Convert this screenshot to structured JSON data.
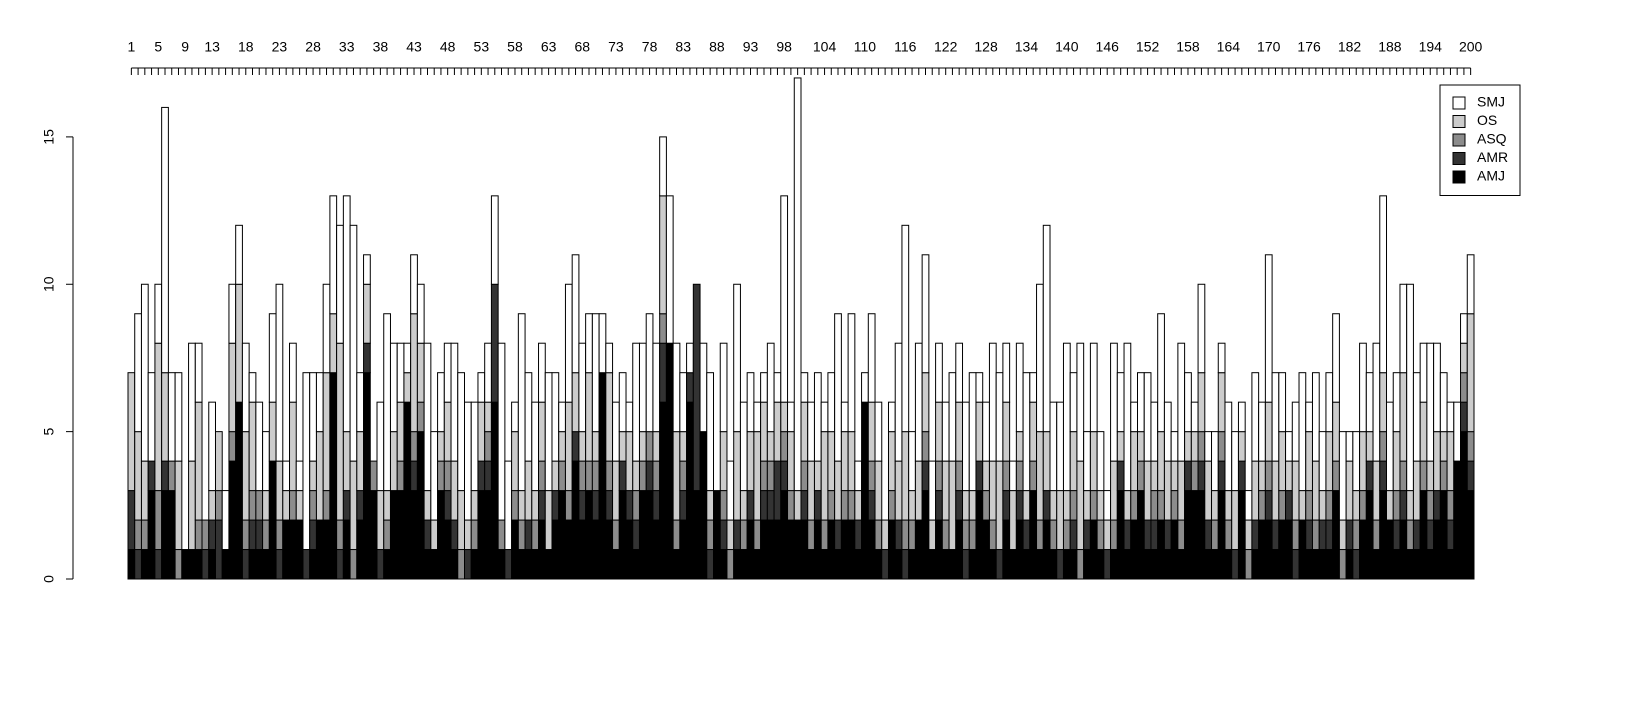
{
  "chart_data": {
    "type": "stacked_bar",
    "categories": [
      1,
      null,
      null,
      null,
      5,
      null,
      null,
      null,
      9,
      null,
      null,
      null,
      13,
      null,
      null,
      null,
      null,
      18,
      null,
      null,
      null,
      null,
      23,
      null,
      null,
      null,
      null,
      28,
      null,
      null,
      null,
      null,
      33,
      null,
      null,
      null,
      null,
      38,
      null,
      null,
      null,
      null,
      43,
      null,
      null,
      null,
      null,
      48,
      null,
      null,
      null,
      null,
      53,
      null,
      null,
      null,
      null,
      58,
      null,
      null,
      null,
      null,
      63,
      null,
      null,
      null,
      null,
      68,
      null,
      null,
      null,
      null,
      73,
      null,
      null,
      null,
      null,
      78,
      null,
      null,
      null,
      null,
      83,
      null,
      null,
      null,
      null,
      88,
      null,
      null,
      null,
      null,
      93,
      null,
      null,
      null,
      null,
      98,
      null,
      null,
      null,
      null,
      null,
      104,
      null,
      null,
      null,
      null,
      null,
      110,
      null,
      null,
      null,
      null,
      null,
      116,
      null,
      null,
      null,
      null,
      null,
      122,
      null,
      null,
      null,
      null,
      null,
      128,
      null,
      null,
      null,
      null,
      null,
      134,
      null,
      null,
      null,
      null,
      null,
      140,
      null,
      null,
      null,
      null,
      null,
      146,
      null,
      null,
      null,
      null,
      null,
      152,
      null,
      null,
      null,
      null,
      null,
      158,
      null,
      null,
      null,
      null,
      null,
      164,
      null,
      null,
      null,
      null,
      null,
      170,
      null,
      null,
      null,
      null,
      null,
      176,
      null,
      null,
      null,
      null,
      null,
      182,
      null,
      null,
      null,
      null,
      null,
      188,
      null,
      null,
      null,
      null,
      null,
      194,
      null,
      null,
      null,
      null,
      null,
      200
    ],
    "series": [
      {
        "name": "AMJ",
        "color": "#000000",
        "values": [
          1,
          0,
          1,
          3,
          0,
          3,
          3,
          0,
          1,
          1,
          1,
          0,
          1,
          0,
          1,
          4,
          6,
          0,
          1,
          1,
          1,
          4,
          0,
          2,
          2,
          2,
          0,
          1,
          2,
          2,
          7,
          0,
          2,
          0,
          2,
          7,
          3,
          0,
          1,
          3,
          3,
          6,
          3,
          5,
          1,
          1,
          3,
          2,
          1,
          0,
          0,
          1,
          3,
          3,
          6,
          1,
          0,
          2,
          1,
          1,
          1,
          2,
          1,
          2,
          3,
          2,
          4,
          2,
          3,
          2,
          7,
          2,
          1,
          3,
          2,
          1,
          3,
          3,
          2,
          6,
          8,
          1,
          2,
          6,
          3,
          5,
          0,
          3,
          1,
          0,
          1,
          1,
          2,
          1,
          2,
          2,
          2,
          3,
          2,
          2,
          2,
          1,
          2,
          1,
          2,
          1,
          2,
          2,
          1,
          6,
          2,
          1,
          0,
          2,
          1,
          0,
          1,
          2,
          3,
          1,
          2,
          1,
          1,
          2,
          0,
          1,
          3,
          2,
          1,
          0,
          2,
          1,
          2,
          1,
          3,
          1,
          2,
          1,
          0,
          1,
          1,
          0,
          1,
          2,
          1,
          0,
          1,
          3,
          1,
          2,
          3,
          1,
          1,
          2,
          1,
          2,
          1,
          3,
          3,
          3,
          1,
          1,
          3,
          1,
          0,
          3,
          0,
          1,
          2,
          2,
          1,
          2,
          2,
          0,
          2,
          1,
          1,
          1,
          1,
          3,
          0,
          1,
          0,
          2,
          3,
          1,
          3,
          2,
          1,
          2,
          1,
          1,
          3,
          1,
          2,
          3,
          1,
          4,
          5,
          3
        ]
      },
      {
        "name": "AMR",
        "color": "#333333",
        "values": [
          2,
          1,
          0,
          1,
          1,
          1,
          0,
          0,
          0,
          0,
          0,
          1,
          1,
          2,
          0,
          0,
          0,
          1,
          1,
          1,
          0,
          0,
          1,
          0,
          0,
          0,
          1,
          1,
          0,
          0,
          0,
          1,
          1,
          0,
          1,
          1,
          0,
          1,
          0,
          0,
          0,
          0,
          1,
          0,
          1,
          0,
          0,
          1,
          1,
          0,
          1,
          0,
          1,
          1,
          4,
          0,
          1,
          0,
          0,
          1,
          0,
          1,
          0,
          1,
          0,
          0,
          1,
          1,
          0,
          1,
          0,
          1,
          0,
          1,
          1,
          1,
          0,
          1,
          1,
          2,
          0,
          0,
          1,
          1,
          7,
          0,
          1,
          0,
          1,
          0,
          1,
          0,
          1,
          0,
          1,
          1,
          2,
          1,
          0,
          0,
          1,
          0,
          1,
          0,
          0,
          1,
          0,
          0,
          1,
          0,
          1,
          0,
          1,
          0,
          1,
          1,
          0,
          0,
          1,
          0,
          1,
          0,
          0,
          1,
          1,
          0,
          1,
          0,
          0,
          1,
          1,
          0,
          1,
          1,
          0,
          0,
          1,
          0,
          1,
          0,
          1,
          0,
          1,
          0,
          0,
          1,
          0,
          1,
          1,
          0,
          0,
          1,
          1,
          0,
          1,
          0,
          0,
          1,
          0,
          1,
          1,
          0,
          1,
          0,
          1,
          1,
          0,
          1,
          0,
          1,
          1,
          0,
          1,
          1,
          0,
          1,
          0,
          1,
          1,
          0,
          0,
          1,
          1,
          0,
          1,
          0,
          1,
          0,
          1,
          1,
          0,
          1,
          0,
          1,
          1,
          0,
          1,
          0,
          1,
          1
        ]
      },
      {
        "name": "ASQ",
        "color": "#8c8c8c",
        "values": [
          0,
          1,
          1,
          0,
          2,
          0,
          1,
          1,
          0,
          0,
          1,
          1,
          0,
          1,
          0,
          1,
          0,
          1,
          1,
          1,
          1,
          0,
          1,
          0,
          1,
          0,
          0,
          1,
          0,
          1,
          0,
          1,
          0,
          1,
          0,
          0,
          1,
          0,
          1,
          0,
          1,
          0,
          1,
          1,
          0,
          0,
          1,
          1,
          0,
          1,
          0,
          1,
          0,
          1,
          0,
          1,
          0,
          1,
          1,
          0,
          1,
          1,
          0,
          0,
          1,
          1,
          0,
          1,
          1,
          1,
          0,
          1,
          1,
          0,
          0,
          1,
          1,
          1,
          1,
          1,
          0,
          1,
          1,
          0,
          0,
          0,
          1,
          0,
          1,
          1,
          0,
          1,
          0,
          1,
          1,
          1,
          0,
          1,
          1,
          0,
          1,
          1,
          0,
          1,
          1,
          0,
          1,
          1,
          0,
          0,
          1,
          1,
          0,
          1,
          0,
          1,
          1,
          0,
          1,
          0,
          1,
          1,
          0,
          1,
          1,
          1,
          0,
          1,
          1,
          0,
          1,
          0,
          1,
          0,
          1,
          1,
          0,
          1,
          0,
          1,
          1,
          1,
          0,
          1,
          1,
          0,
          1,
          0,
          0,
          1,
          1,
          0,
          1,
          1,
          0,
          1,
          1,
          0,
          1,
          1,
          0,
          1,
          1,
          1,
          0,
          0,
          1,
          0,
          1,
          1,
          0,
          1,
          0,
          1,
          0,
          1,
          1,
          0,
          1,
          1,
          1,
          0,
          1,
          1,
          0,
          1,
          1,
          0,
          1,
          1,
          1,
          0,
          1,
          1,
          0,
          1,
          1,
          0,
          1,
          1
        ]
      },
      {
        "name": "OS",
        "color": "#cccccc",
        "values": [
          4,
          3,
          2,
          0,
          5,
          3,
          0,
          3,
          0,
          3,
          4,
          0,
          1,
          2,
          0,
          3,
          4,
          3,
          3,
          0,
          1,
          2,
          2,
          1,
          3,
          1,
          0,
          1,
          3,
          4,
          2,
          6,
          2,
          3,
          2,
          2,
          0,
          2,
          1,
          2,
          2,
          1,
          4,
          2,
          1,
          1,
          1,
          2,
          2,
          2,
          1,
          1,
          2,
          1,
          0,
          0,
          0,
          2,
          1,
          2,
          1,
          2,
          2,
          1,
          1,
          3,
          2,
          1,
          3,
          1,
          0,
          3,
          2,
          1,
          2,
          1,
          1,
          0,
          1,
          4,
          0,
          3,
          1,
          0,
          0,
          0,
          1,
          0,
          2,
          1,
          3,
          1,
          2,
          3,
          2,
          1,
          2,
          1,
          2,
          1,
          2,
          2,
          1,
          3,
          2,
          2,
          2,
          2,
          1,
          0,
          2,
          2,
          1,
          2,
          2,
          3,
          1,
          2,
          2,
          1,
          2,
          2,
          3,
          2,
          1,
          1,
          2,
          1,
          2,
          3,
          2,
          2,
          1,
          1,
          2,
          3,
          2,
          1,
          2,
          1,
          2,
          3,
          1,
          2,
          1,
          1,
          2,
          1,
          1,
          2,
          1,
          2,
          1,
          2,
          2,
          1,
          2,
          1,
          1,
          2,
          2,
          1,
          2,
          1,
          2,
          1,
          1,
          2,
          1,
          2,
          2,
          2,
          1,
          2,
          1,
          2,
          2,
          1,
          2,
          2,
          1,
          2,
          1,
          2,
          1,
          2,
          2,
          1,
          2,
          3,
          1,
          2,
          2,
          1,
          2,
          1,
          2,
          0,
          1,
          4
        ]
      },
      {
        "name": "SMJ",
        "color": "#ffffff",
        "values": [
          0,
          4,
          6,
          3,
          2,
          9,
          3,
          3,
          0,
          4,
          2,
          0,
          3,
          0,
          2,
          2,
          2,
          3,
          1,
          3,
          2,
          3,
          6,
          1,
          2,
          1,
          6,
          3,
          2,
          3,
          4,
          4,
          8,
          8,
          2,
          1,
          0,
          3,
          6,
          3,
          2,
          1,
          2,
          2,
          5,
          3,
          2,
          2,
          4,
          4,
          4,
          3,
          1,
          2,
          3,
          6,
          3,
          1,
          6,
          3,
          3,
          2,
          4,
          3,
          1,
          4,
          4,
          3,
          2,
          4,
          2,
          1,
          2,
          2,
          1,
          4,
          3,
          4,
          3,
          2,
          5,
          3,
          2,
          1,
          0,
          3,
          4,
          0,
          3,
          2,
          5,
          3,
          2,
          1,
          1,
          3,
          1,
          7,
          1,
          14,
          1,
          2,
          3,
          1,
          2,
          5,
          1,
          4,
          1,
          1,
          3,
          2,
          0,
          1,
          4,
          7,
          2,
          4,
          4,
          2,
          2,
          2,
          3,
          2,
          3,
          4,
          1,
          2,
          4,
          3,
          2,
          1,
          3,
          4,
          1,
          5,
          7,
          3,
          3,
          5,
          2,
          4,
          2,
          3,
          2,
          1,
          4,
          2,
          5,
          1,
          2,
          3,
          2,
          4,
          2,
          1,
          4,
          2,
          1,
          3,
          1,
          2,
          1,
          3,
          2,
          1,
          1,
          3,
          2,
          5,
          3,
          2,
          1,
          2,
          4,
          1,
          3,
          2,
          2,
          3,
          3,
          1,
          2,
          3,
          2,
          4,
          6,
          3,
          2,
          3,
          7,
          3,
          2,
          4,
          3,
          2,
          1,
          2,
          1,
          2
        ]
      }
    ],
    "ylim": [
      0,
      17.1
    ],
    "yticks": [
      0,
      5,
      10,
      15
    ],
    "legend": "top-right"
  }
}
